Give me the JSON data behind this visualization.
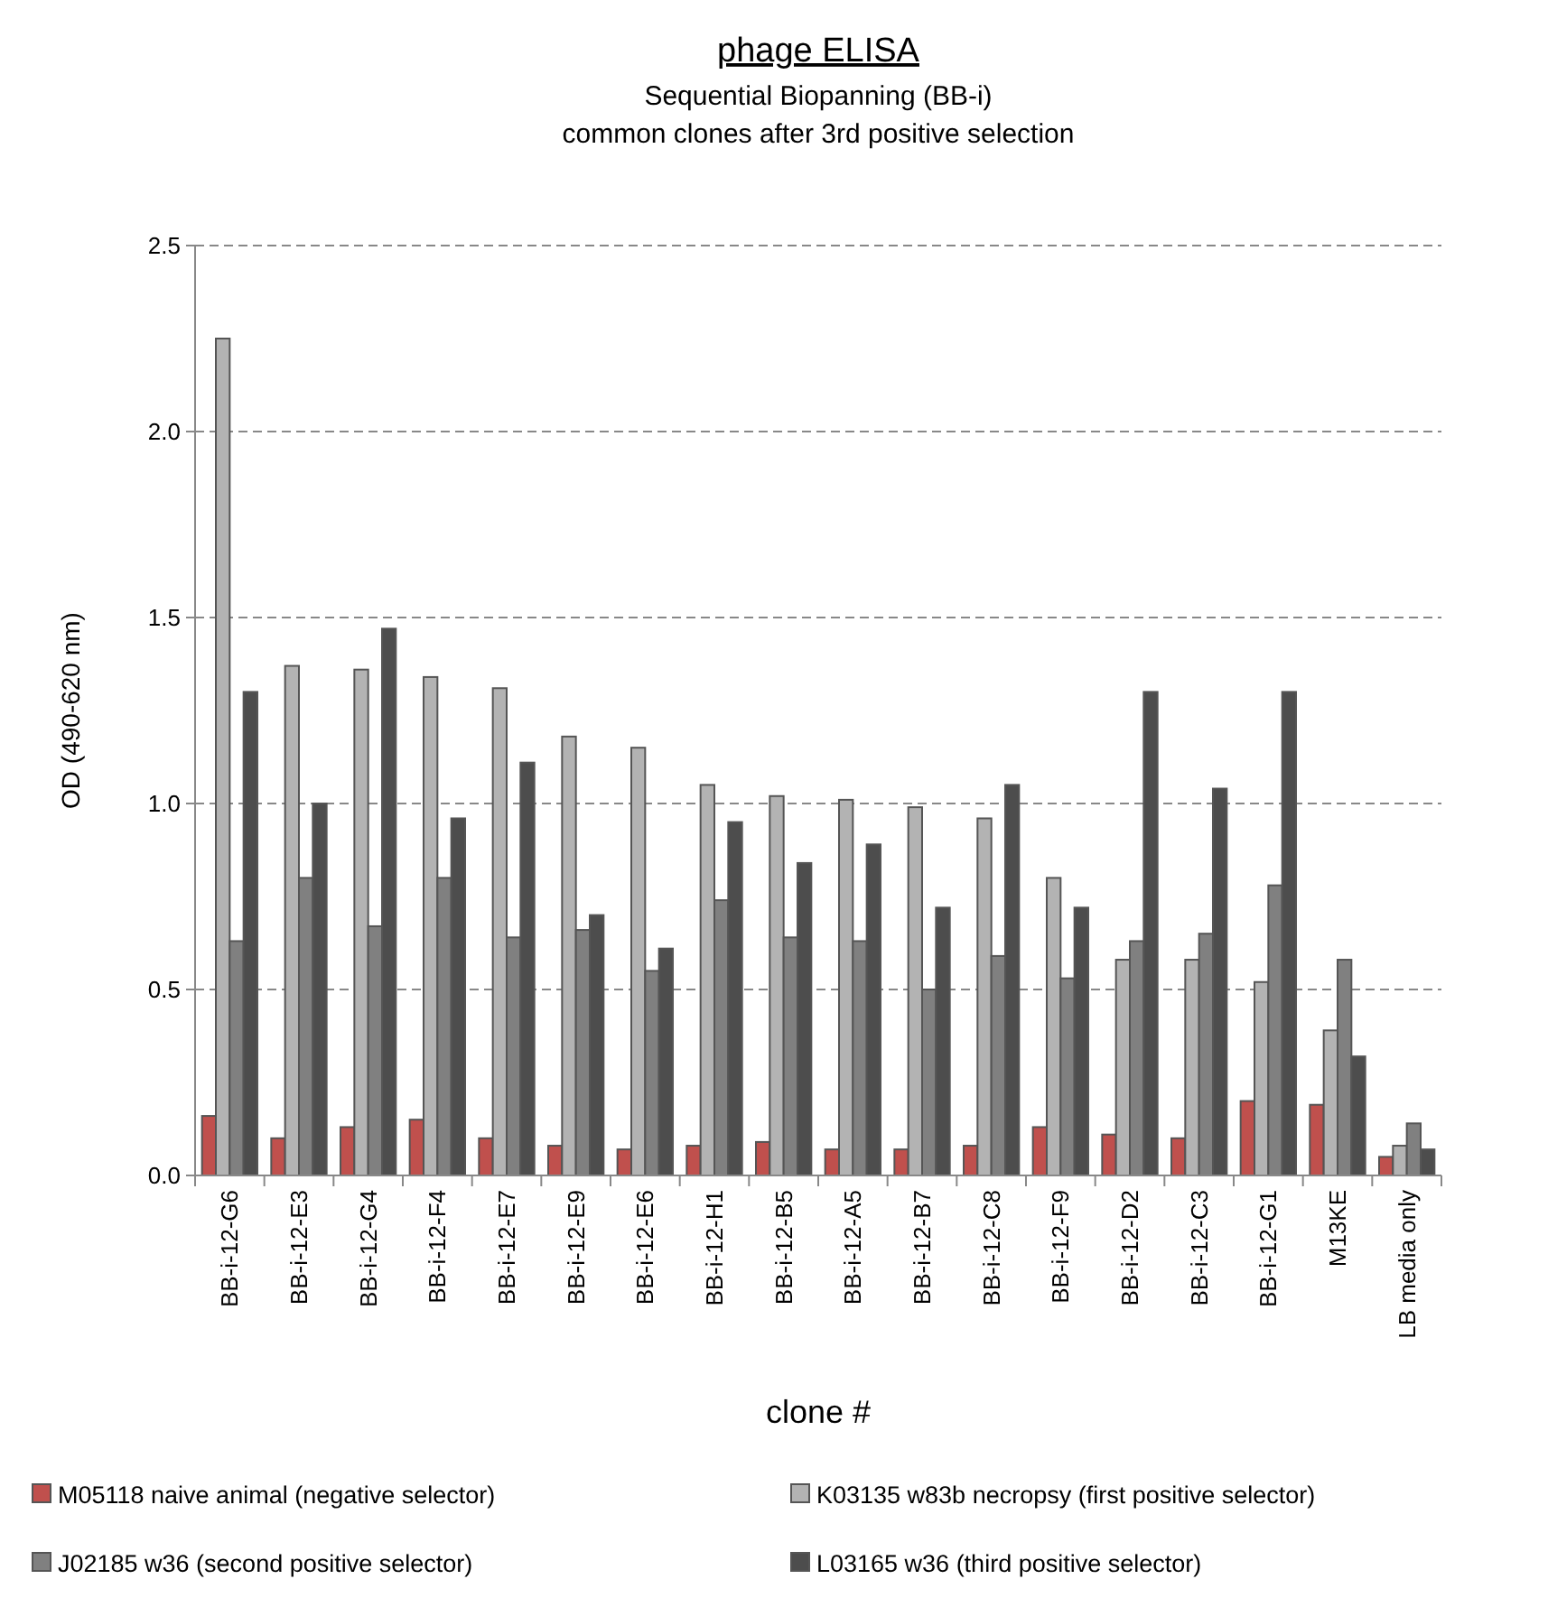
{
  "chart_data": {
    "type": "bar",
    "title": "phage ELISA",
    "subtitle": "Sequential Biopanning (BB-i)\ncommon clones after 3rd positive selection",
    "xlabel": "clone #",
    "ylabel": "OD (490-620 nm)",
    "categories": [
      "BB-i-12-G6",
      "BB-i-12-E3",
      "BB-i-12-G4",
      "BB-i-12-F4",
      "BB-i-12-E7",
      "BB-i-12-E9",
      "BB-i-12-E6",
      "BB-i-12-H1",
      "BB-i-12-B5",
      "BB-i-12-A5",
      "BB-i-12-B7",
      "BB-i-12-C8",
      "BB-i-12-F9",
      "BB-i-12-D2",
      "BB-i-12-C3",
      "BB-i-12-G1",
      "M13KE",
      "LB media only"
    ],
    "series": [
      {
        "name": "M05118 naive animal (negative selector)",
        "color": "#c0504d",
        "values": [
          0.16,
          0.1,
          0.13,
          0.15,
          0.1,
          0.08,
          0.07,
          0.08,
          0.09,
          0.07,
          0.07,
          0.08,
          0.13,
          0.11,
          0.1,
          0.2,
          0.19,
          0.05
        ]
      },
      {
        "name": "K03135 w83b necropsy (first positive selector)",
        "color": "#b3b3b3",
        "values": [
          2.25,
          1.37,
          1.36,
          1.34,
          1.31,
          1.18,
          1.15,
          1.05,
          1.02,
          1.01,
          0.99,
          0.96,
          0.8,
          0.58,
          0.58,
          0.52,
          0.39,
          0.08
        ]
      },
      {
        "name": "J02185 w36 (second positive selector)",
        "color": "#808080",
        "values": [
          0.63,
          0.8,
          0.67,
          0.8,
          0.64,
          0.66,
          0.55,
          0.74,
          0.64,
          0.63,
          0.5,
          0.59,
          0.53,
          0.63,
          0.65,
          0.78,
          0.58,
          0.14
        ]
      },
      {
        "name": "L03165 w36 (third positive selector)",
        "color": "#4d4d4d",
        "values": [
          1.3,
          1.0,
          1.47,
          0.96,
          1.11,
          0.7,
          0.61,
          0.95,
          0.84,
          0.89,
          0.72,
          1.05,
          0.72,
          1.3,
          1.04,
          1.3,
          0.32,
          0.07
        ]
      }
    ],
    "ylim": [
      0,
      2.5
    ],
    "yticks": [
      {
        "value": 0,
        "label": "0.0"
      },
      {
        "value": 0.5,
        "label": "0.5"
      },
      {
        "value": 1,
        "label": "1.0"
      },
      {
        "value": 1.5,
        "label": "1.5"
      },
      {
        "value": 2,
        "label": "2.0"
      },
      {
        "value": 2.5,
        "label": "2.5"
      }
    ],
    "grid": "y",
    "legend": "bottom"
  }
}
